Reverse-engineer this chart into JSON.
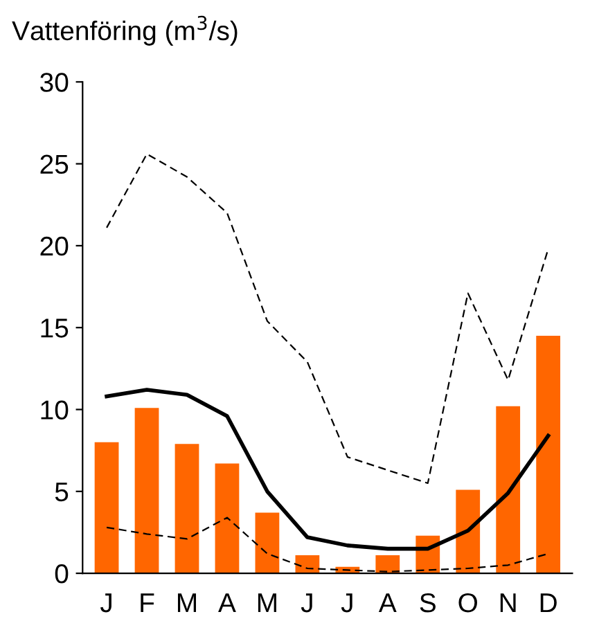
{
  "chart_data": {
    "type": "bar",
    "title": "Vattenföring (m$^{3}$/s)",
    "categories": [
      "J",
      "F",
      "M",
      "A",
      "M",
      "J",
      "J",
      "A",
      "S",
      "O",
      "N",
      "D"
    ],
    "series": [
      {
        "color": "#ff6600",
        "values": [
          8.0,
          10.1,
          7.9,
          6.7,
          3.7,
          1.1,
          0.4,
          1.1,
          2.3,
          5.1,
          10.2,
          14.5
        ]
      },
      {
        "type": "line",
        "color": "#000000",
        "line_style": "solid",
        "values": [
          10.8,
          11.2,
          10.9,
          9.6,
          5.0,
          2.2,
          1.7,
          1.5,
          1.5,
          2.6,
          4.9,
          8.4
        ]
      },
      {
        "type": "line",
        "color": "#000000",
        "line_style": "dashed",
        "values": [
          21.1,
          25.6,
          24.2,
          22.0,
          15.4,
          12.9,
          7.1,
          6.3,
          5.5,
          17.1,
          11.8,
          19.8
        ]
      },
      {
        "type": "line",
        "color": "#000000",
        "line_style": "dashed",
        "values": [
          2.8,
          2.4,
          2.1,
          3.4,
          1.2,
          0.3,
          0.2,
          0.1,
          0.2,
          0.3,
          0.5,
          1.2
        ]
      }
    ],
    "ylim": [
      0,
      30
    ],
    "yticks": [
      0,
      5,
      10,
      15,
      20,
      25,
      30
    ],
    "grid": false,
    "legend": false,
    "marker": "none"
  }
}
